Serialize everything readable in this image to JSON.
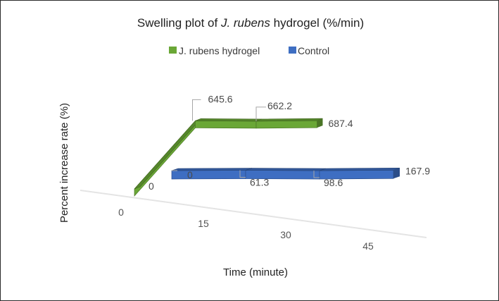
{
  "chart_data": {
    "type": "line",
    "style": "3d-ribbon",
    "title_prefix": "Swelling plot of ",
    "title_species": "J. rubens",
    "title_suffix": " hydrogel (%/min)",
    "xlabel": "Time (minute)",
    "ylabel": "Percent increase rate (%)",
    "categories": [
      "0",
      "15",
      "30",
      "45"
    ],
    "legend_position": "top-center",
    "grid": false,
    "series": [
      {
        "name": "J. rubens hydrogel",
        "color": "#6aa736",
        "values": [
          0,
          645.6,
          662.2,
          687.4
        ],
        "labels": [
          "0",
          "645.6",
          "662.2",
          "687.4"
        ]
      },
      {
        "name": "Control",
        "color": "#3e6ec2",
        "values": [
          0,
          61.3,
          98.6,
          167.9
        ],
        "labels": [
          "0",
          "61.3",
          "98.6",
          "167.9"
        ]
      }
    ]
  }
}
